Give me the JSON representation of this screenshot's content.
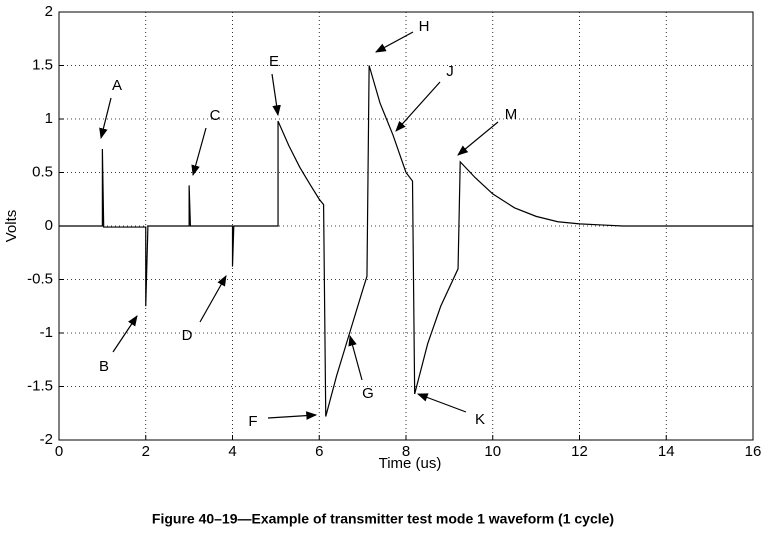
{
  "chart_data": {
    "type": "line",
    "title": "Figure 40–19—Example of transmitter test mode 1 waveform (1 cycle)",
    "xlabel": "Time (us)",
    "ylabel": "Volts",
    "x": [
      0,
      1.0,
      1.0,
      1.03,
      1.03,
      2.0,
      2.0,
      2.05,
      3.0,
      3.0,
      3.03,
      4.0,
      4.0,
      4.03,
      5.05,
      5.05,
      5.3,
      5.55,
      5.8,
      6.0,
      6.1,
      6.15,
      6.4,
      6.7,
      7.0,
      7.1,
      7.15,
      7.4,
      7.7,
      8.0,
      8.15,
      8.2,
      8.5,
      8.8,
      9.2,
      9.25,
      9.6,
      10,
      10.5,
      11,
      11.5,
      12,
      12.5,
      13,
      16
    ],
    "values": [
      0,
      0,
      0.72,
      0,
      -0.01,
      -0.01,
      -0.75,
      0,
      0,
      0.38,
      0,
      0,
      -0.38,
      0,
      0,
      0.98,
      0.75,
      0.55,
      0.38,
      0.25,
      0.2,
      -1.78,
      -1.4,
      -1.0,
      -0.6,
      -0.47,
      1.5,
      1.15,
      0.85,
      0.5,
      0.42,
      -1.57,
      -1.1,
      -0.75,
      -0.4,
      0.6,
      0.45,
      0.3,
      0.17,
      0.09,
      0.04,
      0.02,
      0.01,
      0,
      0
    ],
    "color": "#000000",
    "xlim": [
      0,
      16
    ],
    "xticks": [
      0,
      2,
      4,
      6,
      8,
      10,
      12,
      14,
      16
    ],
    "ylim": [
      -2,
      2
    ],
    "yticks": [
      -2,
      -1.5,
      -1,
      -0.5,
      0,
      0.5,
      1,
      1.5,
      2
    ],
    "grid": true,
    "annotations": [
      "A",
      "B",
      "C",
      "D",
      "E",
      "F",
      "G",
      "H",
      "J",
      "K",
      "M"
    ]
  }
}
